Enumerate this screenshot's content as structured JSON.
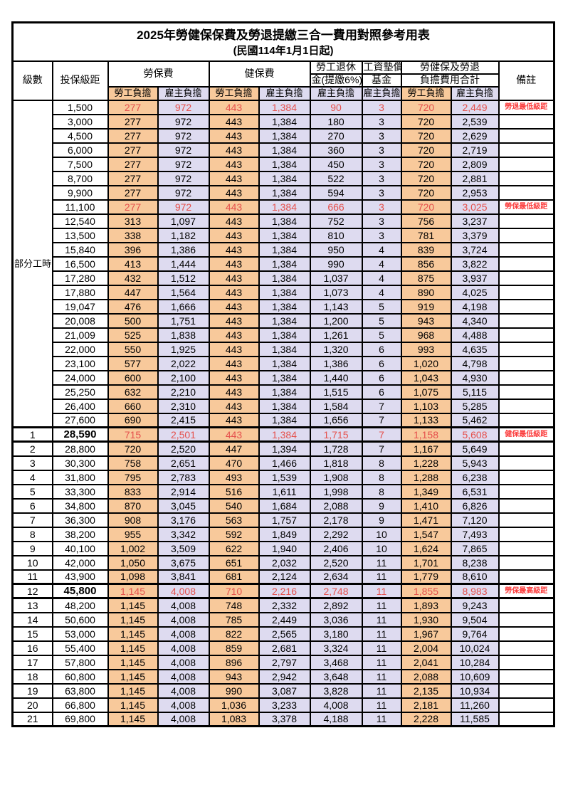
{
  "title": "2025年勞健保保費及勞退提繳三合一費用對照參考用表",
  "subtitle": "(民國114年1月1日起)",
  "colors": {
    "worker_bg": "#F8C99B",
    "employer_bg": "#DEDBF0",
    "highlight_red": "#E5514D",
    "note_red": "#FB3B3B",
    "border": "#000000"
  },
  "header": {
    "level": "級數",
    "bracket": "投保級距",
    "labor_fee": "勞保費",
    "health_fee": "健保費",
    "pension_line1": "勞工退休",
    "pension_line2": "金(提繳6%)",
    "wage_fund_line1": "工資墊償",
    "wage_fund_line2": "基金",
    "total_line1": "勞健保及勞退",
    "total_line2": "負擔費用合計",
    "remark": "備註",
    "worker": "勞工負擔",
    "employer": "雇主負擔"
  },
  "table": {
    "part_time_label": "部分工時",
    "part_time_rowspan": 23,
    "rows": [
      {
        "level": "",
        "bracket": "1,500",
        "li_w": "277",
        "li_e": "972",
        "hi_w": "443",
        "hi_e": "1,384",
        "pension": "90",
        "wage": "3",
        "tot_w": "720",
        "tot_e": "2,449",
        "note": "勞退最低級距",
        "red": true
      },
      {
        "level": "",
        "bracket": "3,000",
        "li_w": "277",
        "li_e": "972",
        "hi_w": "443",
        "hi_e": "1,384",
        "pension": "180",
        "wage": "3",
        "tot_w": "720",
        "tot_e": "2,539",
        "note": ""
      },
      {
        "level": "",
        "bracket": "4,500",
        "li_w": "277",
        "li_e": "972",
        "hi_w": "443",
        "hi_e": "1,384",
        "pension": "270",
        "wage": "3",
        "tot_w": "720",
        "tot_e": "2,629",
        "note": ""
      },
      {
        "level": "",
        "bracket": "6,000",
        "li_w": "277",
        "li_e": "972",
        "hi_w": "443",
        "hi_e": "1,384",
        "pension": "360",
        "wage": "3",
        "tot_w": "720",
        "tot_e": "2,719",
        "note": ""
      },
      {
        "level": "",
        "bracket": "7,500",
        "li_w": "277",
        "li_e": "972",
        "hi_w": "443",
        "hi_e": "1,384",
        "pension": "450",
        "wage": "3",
        "tot_w": "720",
        "tot_e": "2,809",
        "note": ""
      },
      {
        "level": "",
        "bracket": "8,700",
        "li_w": "277",
        "li_e": "972",
        "hi_w": "443",
        "hi_e": "1,384",
        "pension": "522",
        "wage": "3",
        "tot_w": "720",
        "tot_e": "2,881",
        "note": ""
      },
      {
        "level": "",
        "bracket": "9,900",
        "li_w": "277",
        "li_e": "972",
        "hi_w": "443",
        "hi_e": "1,384",
        "pension": "594",
        "wage": "3",
        "tot_w": "720",
        "tot_e": "2,953",
        "note": ""
      },
      {
        "level": "",
        "bracket": "11,100",
        "li_w": "277",
        "li_e": "972",
        "hi_w": "443",
        "hi_e": "1,384",
        "pension": "666",
        "wage": "3",
        "tot_w": "720",
        "tot_e": "3,025",
        "note": "勞保最低級距",
        "red": true
      },
      {
        "level": "",
        "bracket": "12,540",
        "li_w": "313",
        "li_e": "1,097",
        "hi_w": "443",
        "hi_e": "1,384",
        "pension": "752",
        "wage": "3",
        "tot_w": "756",
        "tot_e": "3,237",
        "note": ""
      },
      {
        "level": "",
        "bracket": "13,500",
        "li_w": "338",
        "li_e": "1,182",
        "hi_w": "443",
        "hi_e": "1,384",
        "pension": "810",
        "wage": "3",
        "tot_w": "781",
        "tot_e": "3,379",
        "note": ""
      },
      {
        "level": "",
        "bracket": "15,840",
        "li_w": "396",
        "li_e": "1,386",
        "hi_w": "443",
        "hi_e": "1,384",
        "pension": "950",
        "wage": "4",
        "tot_w": "839",
        "tot_e": "3,724",
        "note": ""
      },
      {
        "level": "",
        "bracket": "16,500",
        "li_w": "413",
        "li_e": "1,444",
        "hi_w": "443",
        "hi_e": "1,384",
        "pension": "990",
        "wage": "4",
        "tot_w": "856",
        "tot_e": "3,822",
        "note": ""
      },
      {
        "level": "",
        "bracket": "17,280",
        "li_w": "432",
        "li_e": "1,512",
        "hi_w": "443",
        "hi_e": "1,384",
        "pension": "1,037",
        "wage": "4",
        "tot_w": "875",
        "tot_e": "3,937",
        "note": ""
      },
      {
        "level": "",
        "bracket": "17,880",
        "li_w": "447",
        "li_e": "1,564",
        "hi_w": "443",
        "hi_e": "1,384",
        "pension": "1,073",
        "wage": "4",
        "tot_w": "890",
        "tot_e": "4,025",
        "note": ""
      },
      {
        "level": "",
        "bracket": "19,047",
        "li_w": "476",
        "li_e": "1,666",
        "hi_w": "443",
        "hi_e": "1,384",
        "pension": "1,143",
        "wage": "5",
        "tot_w": "919",
        "tot_e": "4,198",
        "note": ""
      },
      {
        "level": "",
        "bracket": "20,008",
        "li_w": "500",
        "li_e": "1,751",
        "hi_w": "443",
        "hi_e": "1,384",
        "pension": "1,200",
        "wage": "5",
        "tot_w": "943",
        "tot_e": "4,340",
        "note": ""
      },
      {
        "level": "",
        "bracket": "21,009",
        "li_w": "525",
        "li_e": "1,838",
        "hi_w": "443",
        "hi_e": "1,384",
        "pension": "1,261",
        "wage": "5",
        "tot_w": "968",
        "tot_e": "4,488",
        "note": ""
      },
      {
        "level": "",
        "bracket": "22,000",
        "li_w": "550",
        "li_e": "1,925",
        "hi_w": "443",
        "hi_e": "1,384",
        "pension": "1,320",
        "wage": "6",
        "tot_w": "993",
        "tot_e": "4,635",
        "note": ""
      },
      {
        "level": "",
        "bracket": "23,100",
        "li_w": "577",
        "li_e": "2,022",
        "hi_w": "443",
        "hi_e": "1,384",
        "pension": "1,386",
        "wage": "6",
        "tot_w": "1,020",
        "tot_e": "4,798",
        "note": ""
      },
      {
        "level": "",
        "bracket": "24,000",
        "li_w": "600",
        "li_e": "2,100",
        "hi_w": "443",
        "hi_e": "1,384",
        "pension": "1,440",
        "wage": "6",
        "tot_w": "1,043",
        "tot_e": "4,930",
        "note": ""
      },
      {
        "level": "",
        "bracket": "25,250",
        "li_w": "632",
        "li_e": "2,210",
        "hi_w": "443",
        "hi_e": "1,384",
        "pension": "1,515",
        "wage": "6",
        "tot_w": "1,075",
        "tot_e": "5,115",
        "note": ""
      },
      {
        "level": "",
        "bracket": "26,400",
        "li_w": "660",
        "li_e": "2,310",
        "hi_w": "443",
        "hi_e": "1,384",
        "pension": "1,584",
        "wage": "7",
        "tot_w": "1,103",
        "tot_e": "5,285",
        "note": ""
      },
      {
        "level": "",
        "bracket": "27,600",
        "li_w": "690",
        "li_e": "2,415",
        "hi_w": "443",
        "hi_e": "1,384",
        "pension": "1,656",
        "wage": "7",
        "tot_w": "1,133",
        "tot_e": "5,462",
        "note": ""
      },
      {
        "level": "1",
        "bracket": "28,590",
        "li_w": "715",
        "li_e": "2,501",
        "hi_w": "443",
        "hi_e": "1,384",
        "pension": "1,715",
        "wage": "7",
        "tot_w": "1,158",
        "tot_e": "5,608",
        "note": "健保最低級距",
        "red": true,
        "bold": true,
        "thick": true
      },
      {
        "level": "2",
        "bracket": "28,800",
        "li_w": "720",
        "li_e": "2,520",
        "hi_w": "447",
        "hi_e": "1,394",
        "pension": "1,728",
        "wage": "7",
        "tot_w": "1,167",
        "tot_e": "5,649",
        "note": ""
      },
      {
        "level": "3",
        "bracket": "30,300",
        "li_w": "758",
        "li_e": "2,651",
        "hi_w": "470",
        "hi_e": "1,466",
        "pension": "1,818",
        "wage": "8",
        "tot_w": "1,228",
        "tot_e": "5,943",
        "note": ""
      },
      {
        "level": "4",
        "bracket": "31,800",
        "li_w": "795",
        "li_e": "2,783",
        "hi_w": "493",
        "hi_e": "1,539",
        "pension": "1,908",
        "wage": "8",
        "tot_w": "1,288",
        "tot_e": "6,238",
        "note": ""
      },
      {
        "level": "5",
        "bracket": "33,300",
        "li_w": "833",
        "li_e": "2,914",
        "hi_w": "516",
        "hi_e": "1,611",
        "pension": "1,998",
        "wage": "8",
        "tot_w": "1,349",
        "tot_e": "6,531",
        "note": ""
      },
      {
        "level": "6",
        "bracket": "34,800",
        "li_w": "870",
        "li_e": "3,045",
        "hi_w": "540",
        "hi_e": "1,684",
        "pension": "2,088",
        "wage": "9",
        "tot_w": "1,410",
        "tot_e": "6,826",
        "note": ""
      },
      {
        "level": "7",
        "bracket": "36,300",
        "li_w": "908",
        "li_e": "3,176",
        "hi_w": "563",
        "hi_e": "1,757",
        "pension": "2,178",
        "wage": "9",
        "tot_w": "1,471",
        "tot_e": "7,120",
        "note": ""
      },
      {
        "level": "8",
        "bracket": "38,200",
        "li_w": "955",
        "li_e": "3,342",
        "hi_w": "592",
        "hi_e": "1,849",
        "pension": "2,292",
        "wage": "10",
        "tot_w": "1,547",
        "tot_e": "7,493",
        "note": ""
      },
      {
        "level": "9",
        "bracket": "40,100",
        "li_w": "1,002",
        "li_e": "3,509",
        "hi_w": "622",
        "hi_e": "1,940",
        "pension": "2,406",
        "wage": "10",
        "tot_w": "1,624",
        "tot_e": "7,865",
        "note": ""
      },
      {
        "level": "10",
        "bracket": "42,000",
        "li_w": "1,050",
        "li_e": "3,675",
        "hi_w": "651",
        "hi_e": "2,032",
        "pension": "2,520",
        "wage": "11",
        "tot_w": "1,701",
        "tot_e": "8,238",
        "note": ""
      },
      {
        "level": "11",
        "bracket": "43,900",
        "li_w": "1,098",
        "li_e": "3,841",
        "hi_w": "681",
        "hi_e": "2,124",
        "pension": "2,634",
        "wage": "11",
        "tot_w": "1,779",
        "tot_e": "8,610",
        "note": ""
      },
      {
        "level": "12",
        "bracket": "45,800",
        "li_w": "1,145",
        "li_e": "4,008",
        "hi_w": "710",
        "hi_e": "2,216",
        "pension": "2,748",
        "wage": "11",
        "tot_w": "1,855",
        "tot_e": "8,983",
        "note": "勞保最高級距",
        "red": true,
        "bold": true,
        "thick": true
      },
      {
        "level": "13",
        "bracket": "48,200",
        "li_w": "1,145",
        "li_e": "4,008",
        "hi_w": "748",
        "hi_e": "2,332",
        "pension": "2,892",
        "wage": "11",
        "tot_w": "1,893",
        "tot_e": "9,243",
        "note": ""
      },
      {
        "level": "14",
        "bracket": "50,600",
        "li_w": "1,145",
        "li_e": "4,008",
        "hi_w": "785",
        "hi_e": "2,449",
        "pension": "3,036",
        "wage": "11",
        "tot_w": "1,930",
        "tot_e": "9,504",
        "note": ""
      },
      {
        "level": "15",
        "bracket": "53,000",
        "li_w": "1,145",
        "li_e": "4,008",
        "hi_w": "822",
        "hi_e": "2,565",
        "pension": "3,180",
        "wage": "11",
        "tot_w": "1,967",
        "tot_e": "9,764",
        "note": ""
      },
      {
        "level": "16",
        "bracket": "55,400",
        "li_w": "1,145",
        "li_e": "4,008",
        "hi_w": "859",
        "hi_e": "2,681",
        "pension": "3,324",
        "wage": "11",
        "tot_w": "2,004",
        "tot_e": "10,024",
        "note": ""
      },
      {
        "level": "17",
        "bracket": "57,800",
        "li_w": "1,145",
        "li_e": "4,008",
        "hi_w": "896",
        "hi_e": "2,797",
        "pension": "3,468",
        "wage": "11",
        "tot_w": "2,041",
        "tot_e": "10,284",
        "note": ""
      },
      {
        "level": "18",
        "bracket": "60,800",
        "li_w": "1,145",
        "li_e": "4,008",
        "hi_w": "943",
        "hi_e": "2,942",
        "pension": "3,648",
        "wage": "11",
        "tot_w": "2,088",
        "tot_e": "10,609",
        "note": ""
      },
      {
        "level": "19",
        "bracket": "63,800",
        "li_w": "1,145",
        "li_e": "4,008",
        "hi_w": "990",
        "hi_e": "3,087",
        "pension": "3,828",
        "wage": "11",
        "tot_w": "2,135",
        "tot_e": "10,934",
        "note": ""
      },
      {
        "level": "20",
        "bracket": "66,800",
        "li_w": "1,145",
        "li_e": "4,008",
        "hi_w": "1,036",
        "hi_e": "3,233",
        "pension": "4,008",
        "wage": "11",
        "tot_w": "2,181",
        "tot_e": "11,260",
        "note": ""
      },
      {
        "level": "21",
        "bracket": "69,800",
        "li_w": "1,145",
        "li_e": "4,008",
        "hi_w": "1,083",
        "hi_e": "3,378",
        "pension": "4,188",
        "wage": "11",
        "tot_w": "2,228",
        "tot_e": "11,585",
        "note": ""
      }
    ]
  }
}
